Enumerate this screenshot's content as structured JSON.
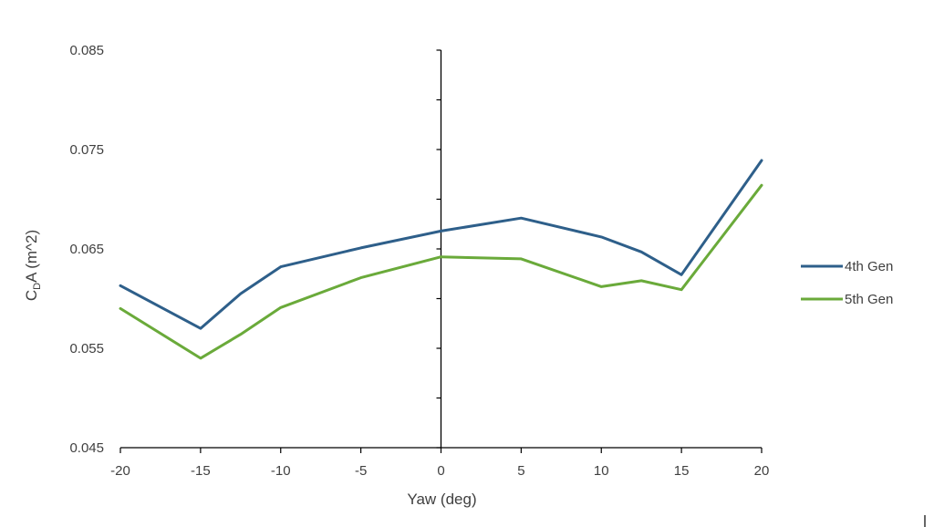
{
  "chart_data": {
    "type": "line",
    "xlabel": "Yaw (deg)",
    "ylabel": {
      "prefix": "C",
      "subscript": "D",
      "suffix": "A (m^2)"
    },
    "xlim": [
      -20,
      20
    ],
    "ylim": [
      0.045,
      0.085
    ],
    "xticks": [
      -20,
      -15,
      -10,
      -5,
      0,
      5,
      10,
      15,
      20
    ],
    "xtick_labels": [
      "-20",
      "-15",
      "-10",
      "-5",
      "0",
      "5",
      "10",
      "15",
      "20"
    ],
    "yticks": [
      0.045,
      0.055,
      0.065,
      0.075,
      0.085
    ],
    "ytick_labels": [
      "0.045",
      "0.055",
      "0.065",
      "0.075",
      "0.085"
    ],
    "grid": false,
    "legend_position": "right",
    "series": [
      {
        "name": "4th Gen",
        "color": "#2E5F8A",
        "x": [
          -20,
          -15,
          -12.5,
          -10,
          -5,
          0,
          5,
          10,
          12.5,
          15,
          20
        ],
        "y": [
          0.0613,
          0.057,
          0.0605,
          0.0632,
          0.0651,
          0.0668,
          0.0681,
          0.0662,
          0.0647,
          0.0624,
          0.0739
        ]
      },
      {
        "name": "5th Gen",
        "color": "#6AAA3A",
        "x": [
          -20,
          -15,
          -12.5,
          -10,
          -5,
          0,
          5,
          10,
          12.5,
          15,
          20
        ],
        "y": [
          0.059,
          0.054,
          0.0564,
          0.0591,
          0.0621,
          0.0642,
          0.064,
          0.0612,
          0.0618,
          0.0609,
          0.0714
        ]
      }
    ]
  }
}
